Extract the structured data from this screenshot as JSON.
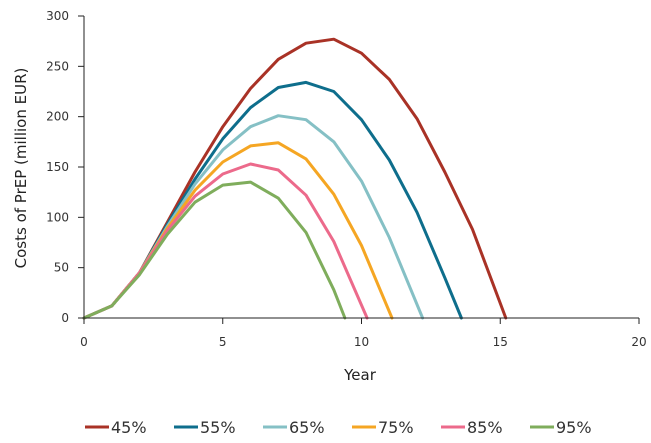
{
  "chart_data": {
    "type": "line",
    "title": "",
    "xlabel": "Year",
    "ylabel": "Costs of PrEP (million EUR)",
    "xlim": [
      0,
      20
    ],
    "ylim": [
      0,
      300
    ],
    "xticks": [
      0,
      5,
      10,
      15,
      20
    ],
    "yticks": [
      0,
      50,
      100,
      150,
      200,
      250,
      300
    ],
    "grid": false,
    "legend": "bottom",
    "series": [
      {
        "name": "45%",
        "color": "#a93226",
        "x": [
          0,
          1,
          2,
          3,
          4,
          5,
          6,
          7,
          8,
          9,
          10,
          11,
          12,
          13,
          14,
          15.2
        ],
        "values": [
          0,
          12,
          45,
          95,
          145,
          190,
          228,
          257,
          273,
          277,
          263,
          237,
          198,
          145,
          88,
          0
        ]
      },
      {
        "name": "55%",
        "color": "#0e6e8c",
        "x": [
          0,
          1,
          2,
          3,
          4,
          5,
          6,
          7,
          8,
          9,
          10,
          11,
          12,
          13,
          13.6
        ],
        "values": [
          0,
          12,
          45,
          93,
          138,
          178,
          209,
          229,
          234,
          225,
          197,
          157,
          105,
          40,
          0
        ]
      },
      {
        "name": "65%",
        "color": "#85c0c5",
        "x": [
          0,
          1,
          2,
          3,
          4,
          5,
          6,
          7,
          8,
          9,
          10,
          11,
          12.2
        ],
        "values": [
          0,
          12,
          45,
          91,
          133,
          167,
          190,
          201,
          197,
          175,
          136,
          80,
          0
        ]
      },
      {
        "name": "75%",
        "color": "#f5a623",
        "x": [
          0,
          1,
          2,
          3,
          4,
          5,
          6,
          7,
          8,
          9,
          10,
          11.1
        ],
        "values": [
          0,
          12,
          45,
          89,
          127,
          155,
          171,
          174,
          158,
          123,
          72,
          0
        ]
      },
      {
        "name": "85%",
        "color": "#ec6a8b",
        "x": [
          0,
          1,
          2,
          3,
          4,
          5,
          6,
          7,
          8,
          9,
          10.2
        ],
        "values": [
          0,
          12,
          45,
          87,
          121,
          143,
          153,
          147,
          122,
          76,
          0
        ]
      },
      {
        "name": "95%",
        "color": "#7fad5c",
        "x": [
          0,
          1,
          2,
          3,
          4,
          5,
          6,
          7,
          8,
          9,
          9.4
        ],
        "values": [
          0,
          12,
          43,
          83,
          115,
          132,
          135,
          119,
          85,
          28,
          0
        ]
      }
    ]
  }
}
